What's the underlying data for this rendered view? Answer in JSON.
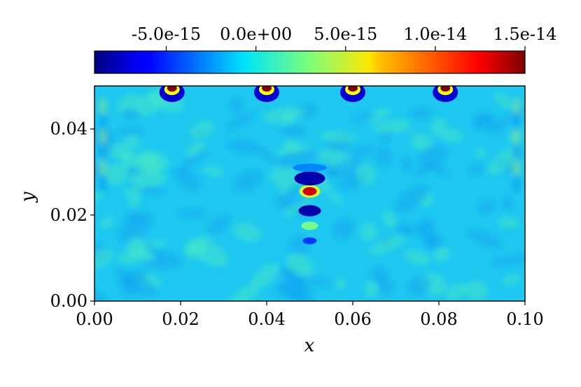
{
  "chart_data": {
    "type": "heatmap",
    "title": "",
    "xlabel": "x",
    "ylabel": "y",
    "xlim": [
      0.0,
      0.1
    ],
    "ylim": [
      0.0,
      0.05
    ],
    "x_ticks": [
      "0.00",
      "0.02",
      "0.04",
      "0.06",
      "0.08",
      "0.10"
    ],
    "x_tick_values": [
      0.0,
      0.02,
      0.04,
      0.06,
      0.08,
      0.1
    ],
    "y_ticks": [
      "0.00",
      "0.02",
      "0.04"
    ],
    "y_tick_values": [
      0.0,
      0.02,
      0.04
    ],
    "colormap": "jet",
    "colorbar": {
      "position": "top",
      "min": -9e-15,
      "max": 1.5e-14,
      "ticks": [
        "-5.0e-15",
        "0.0e+00",
        "5.0e-15",
        "1.0e-14",
        "1.5e-14"
      ],
      "tick_values": [
        -5e-15,
        0.0,
        5e-15,
        1e-14,
        1.5e-14
      ]
    },
    "background_value": 0.0,
    "features": [
      {
        "x": 0.018,
        "y": 0.0495,
        "value": 1.5e-14,
        "kind": "source"
      },
      {
        "x": 0.04,
        "y": 0.0495,
        "value": 1.5e-14,
        "kind": "source"
      },
      {
        "x": 0.06,
        "y": 0.0495,
        "value": 1.5e-14,
        "kind": "source"
      },
      {
        "x": 0.0815,
        "y": 0.0495,
        "value": 1.5e-14,
        "kind": "source"
      },
      {
        "x": 0.05,
        "y": 0.0255,
        "value": 1.3e-14,
        "kind": "peak"
      },
      {
        "x": 0.05,
        "y": 0.0285,
        "value": -8e-15,
        "kind": "trough"
      },
      {
        "x": 0.05,
        "y": 0.021,
        "value": -8e-15,
        "kind": "trough"
      }
    ]
  }
}
